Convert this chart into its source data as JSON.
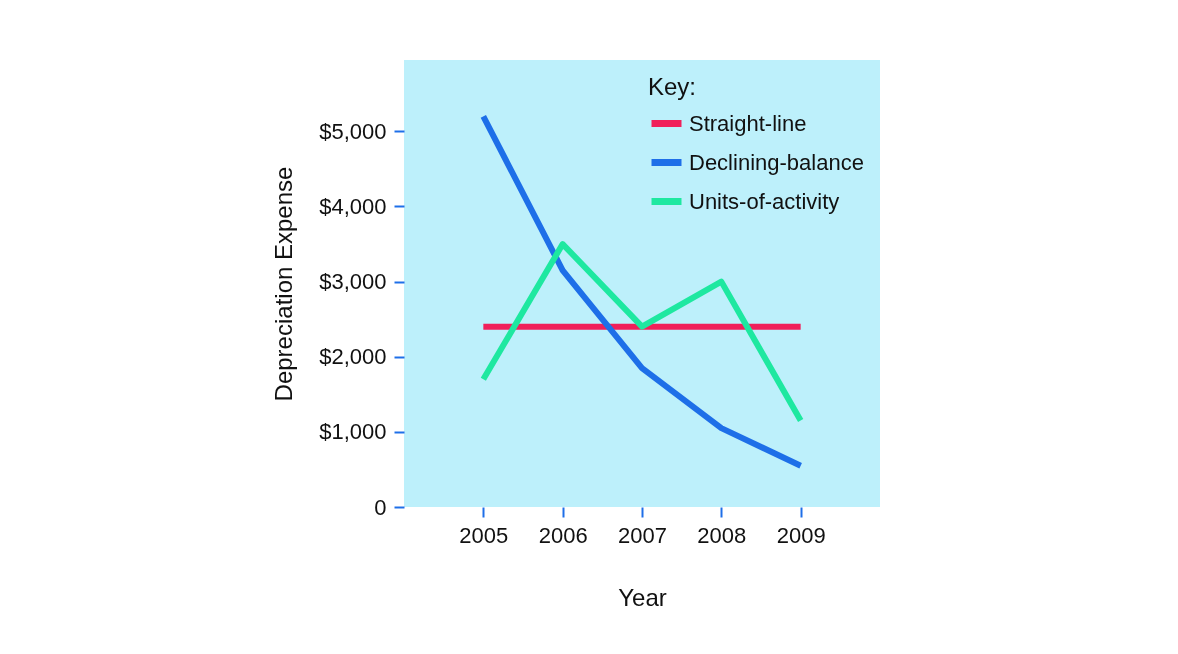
{
  "chart_data": {
    "type": "line",
    "xlabel": "Year",
    "ylabel": "Depreciation Expense",
    "legend_title": "Key:",
    "legend": "top right",
    "grid": false,
    "marker": "none",
    "line_style": "solid",
    "x": [
      2005,
      2006,
      2007,
      2008,
      2009
    ],
    "series": [
      {
        "name": "Straight-line",
        "color": "#f0205a",
        "values": [
          2400,
          2400,
          2400,
          2400,
          2400
        ]
      },
      {
        "name": "Declining-balance",
        "color": "#1e6fe8",
        "values": [
          5200,
          3150,
          1850,
          1050,
          550
        ]
      },
      {
        "name": "Units-of-activity",
        "color": "#1ee8a0",
        "values": [
          1700,
          3500,
          2400,
          3000,
          1150
        ]
      }
    ],
    "xlim": [
      2004,
      2010
    ],
    "xticks": [
      2005,
      2006,
      2007,
      2008,
      2009
    ],
    "ylim": [
      0,
      5950
    ],
    "yticks": [
      0,
      {
        "value": 1000,
        "label": "$1,000"
      },
      {
        "value": 2000,
        "label": "$2,000"
      },
      {
        "value": 3000,
        "label": "$3,000"
      },
      {
        "value": 4000,
        "label": "$4,000"
      },
      {
        "value": 5000,
        "label": "$5,000"
      }
    ]
  }
}
